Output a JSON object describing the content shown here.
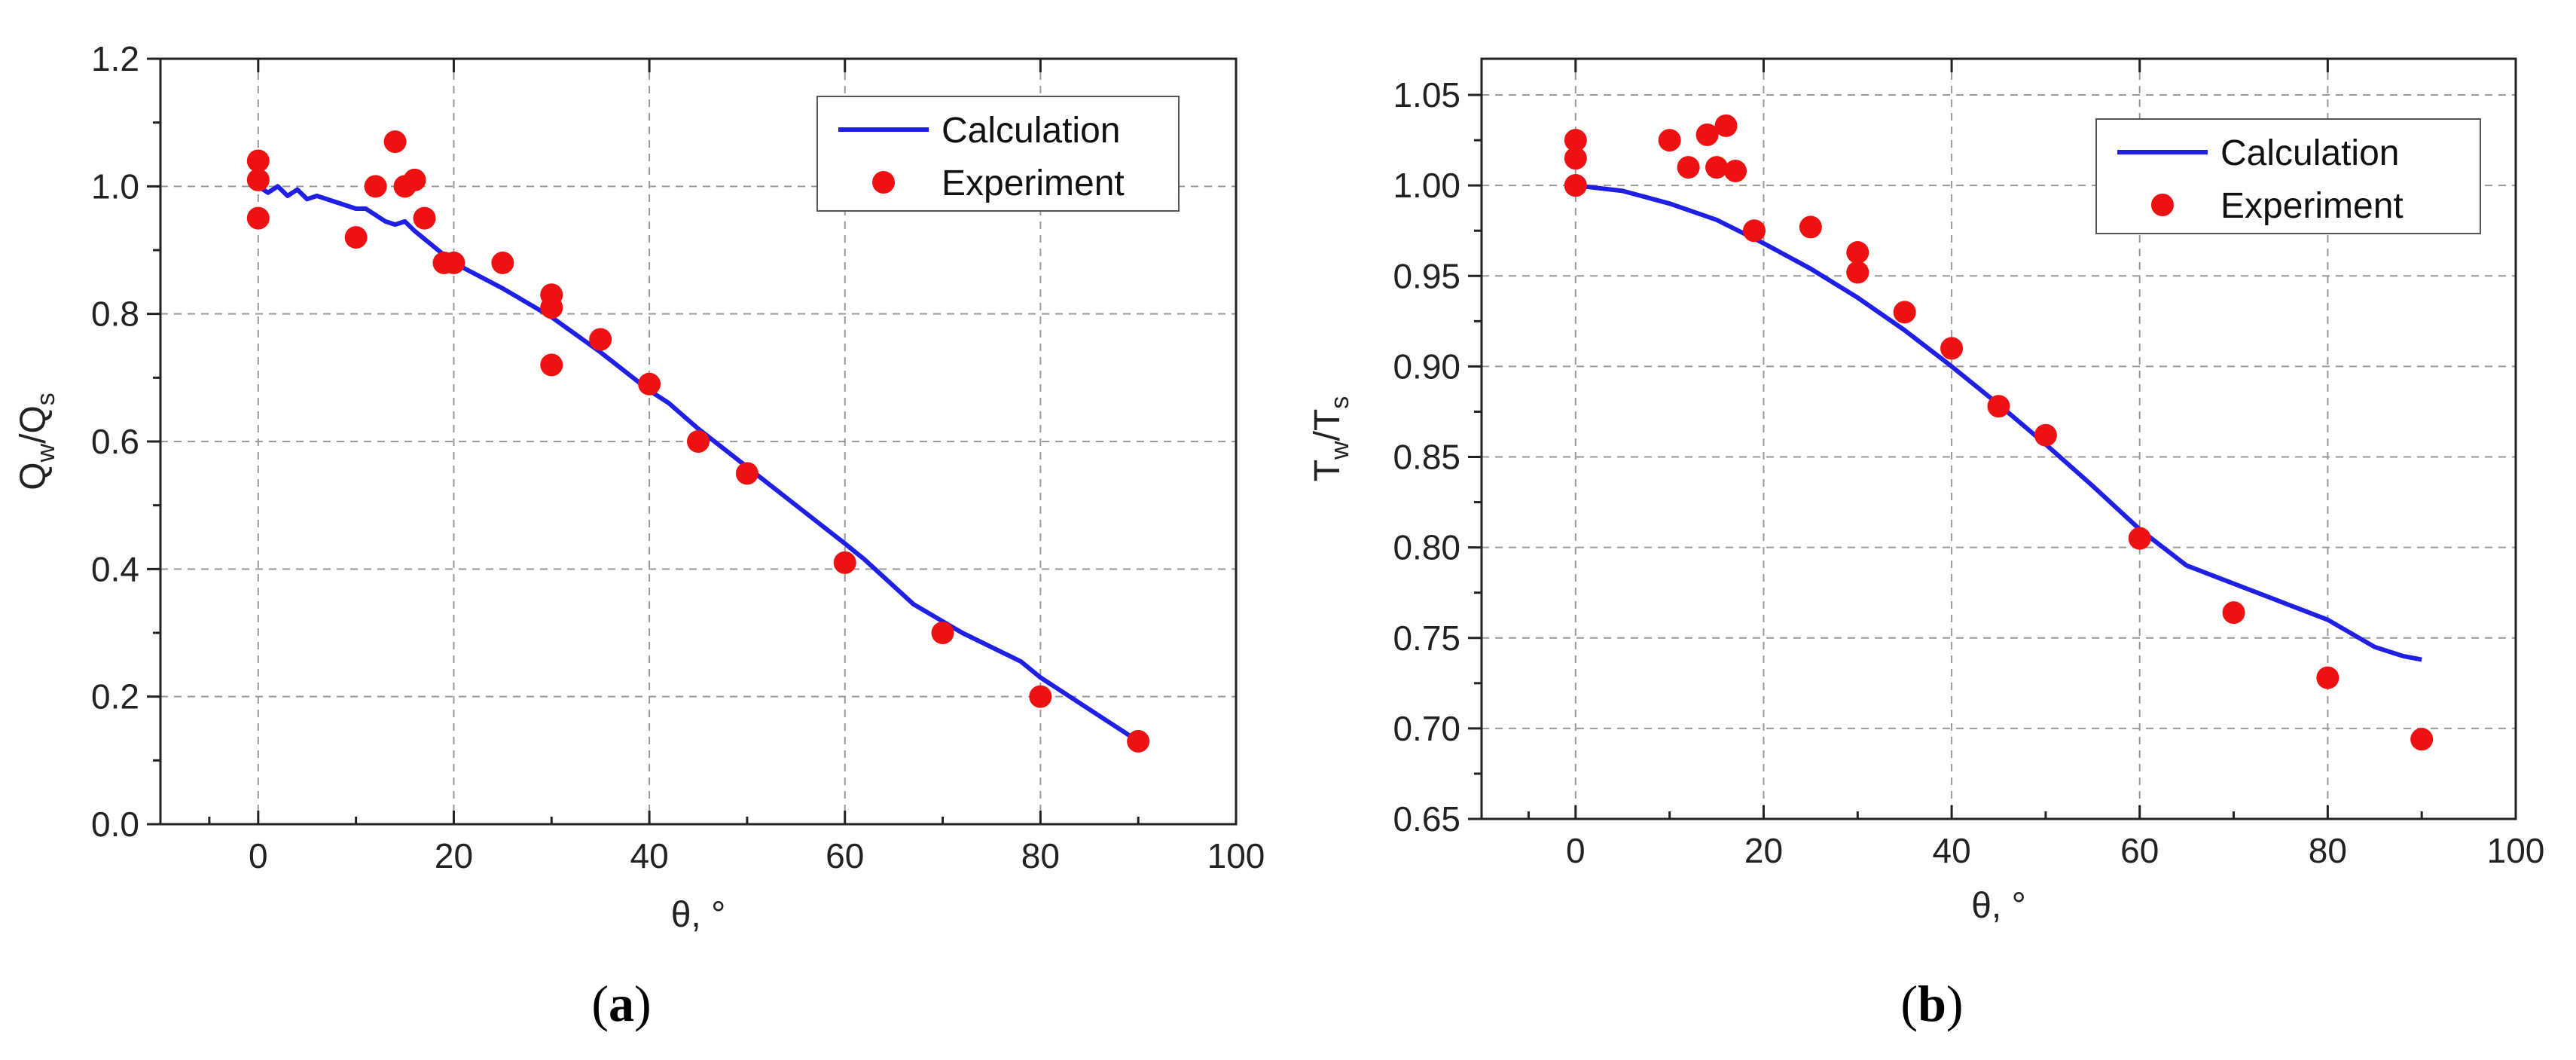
{
  "chart_data": [
    {
      "panel": "(a)",
      "panel_caption": {
        "open": "(",
        "letter": "a",
        "close": ")"
      },
      "type": "line+scatter",
      "xlabel": "θ, °",
      "ylabel": {
        "base1": "Q",
        "sub1": "w",
        "sep": "/Q",
        "sub2": "s"
      },
      "xlim": [
        -10,
        100
      ],
      "ylim": [
        0.0,
        1.2
      ],
      "xticks": [
        0,
        20,
        40,
        60,
        80,
        100
      ],
      "yticks": [
        0.0,
        0.2,
        0.4,
        0.6,
        0.8,
        1.0,
        1.2
      ],
      "ytick_decimals": 1,
      "grid": true,
      "legend": {
        "placement": "top-right",
        "entries": [
          "Calculation",
          "Experiment"
        ]
      },
      "series": [
        {
          "name": "Calculation",
          "kind": "line",
          "color": "#1f1fe6",
          "x": [
            0,
            1,
            2,
            3,
            4,
            5,
            6,
            8,
            10,
            11,
            12,
            13,
            14,
            15,
            16,
            18,
            20,
            25,
            30,
            35,
            40,
            42,
            45,
            50,
            55,
            60,
            62,
            67,
            72,
            78,
            80,
            85,
            90
          ],
          "y": [
            1.0,
            0.99,
            1.0,
            0.985,
            0.995,
            0.98,
            0.985,
            0.975,
            0.965,
            0.965,
            0.955,
            0.945,
            0.94,
            0.945,
            0.93,
            0.905,
            0.88,
            0.84,
            0.795,
            0.74,
            0.68,
            0.66,
            0.62,
            0.56,
            0.5,
            0.44,
            0.415,
            0.345,
            0.3,
            0.255,
            0.23,
            0.18,
            0.13
          ]
        },
        {
          "name": "Experiment",
          "kind": "scatter",
          "color": "#ee1111",
          "x": [
            0,
            0,
            0,
            10,
            12,
            14,
            15,
            16,
            17,
            19,
            20,
            25,
            30,
            30,
            30,
            35,
            40,
            45,
            50,
            60,
            70,
            80,
            90
          ],
          "y": [
            1.04,
            1.01,
            0.95,
            0.92,
            1.0,
            1.07,
            1.0,
            1.01,
            0.95,
            0.88,
            0.88,
            0.88,
            0.83,
            0.81,
            0.72,
            0.76,
            0.69,
            0.6,
            0.55,
            0.41,
            0.3,
            0.2,
            0.13
          ]
        }
      ]
    },
    {
      "panel": "(b)",
      "panel_caption": {
        "open": "(",
        "letter": "b",
        "close": ")"
      },
      "type": "line+scatter",
      "xlabel": "θ, °",
      "ylabel": {
        "base1": "T",
        "sub1": "w",
        "sep": "/T",
        "sub2": "s"
      },
      "xlim": [
        -10,
        100
      ],
      "ylim": [
        0.65,
        1.07
      ],
      "xticks": [
        0,
        20,
        40,
        60,
        80,
        100
      ],
      "yticks": [
        0.65,
        0.7,
        0.75,
        0.8,
        0.85,
        0.9,
        0.95,
        1.0,
        1.05
      ],
      "ytick_decimals": 2,
      "grid": true,
      "legend": {
        "placement": "top-right",
        "entries": [
          "Calculation",
          "Experiment"
        ]
      },
      "series": [
        {
          "name": "Calculation",
          "kind": "line",
          "color": "#1f1fe6",
          "x": [
            0,
            5,
            10,
            15,
            20,
            25,
            30,
            35,
            40,
            45,
            50,
            55,
            60,
            65,
            70,
            75,
            80,
            85,
            88,
            90
          ],
          "y": [
            1.0,
            0.997,
            0.99,
            0.981,
            0.968,
            0.954,
            0.938,
            0.92,
            0.9,
            0.879,
            0.857,
            0.834,
            0.81,
            0.79,
            0.78,
            0.77,
            0.76,
            0.745,
            0.74,
            0.738
          ]
        },
        {
          "name": "Experiment",
          "kind": "scatter",
          "color": "#ee1111",
          "x": [
            0,
            0,
            0,
            0,
            10,
            12,
            14,
            15,
            16,
            17,
            19,
            25,
            30,
            30,
            35,
            40,
            45,
            50,
            60,
            70,
            80,
            90
          ],
          "y": [
            1.025,
            1.015,
            1.0,
            1.0,
            1.025,
            1.01,
            1.028,
            1.01,
            1.033,
            1.008,
            0.975,
            0.977,
            0.963,
            0.952,
            0.93,
            0.91,
            0.878,
            0.862,
            0.805,
            0.764,
            0.728,
            0.694
          ]
        }
      ]
    }
  ]
}
